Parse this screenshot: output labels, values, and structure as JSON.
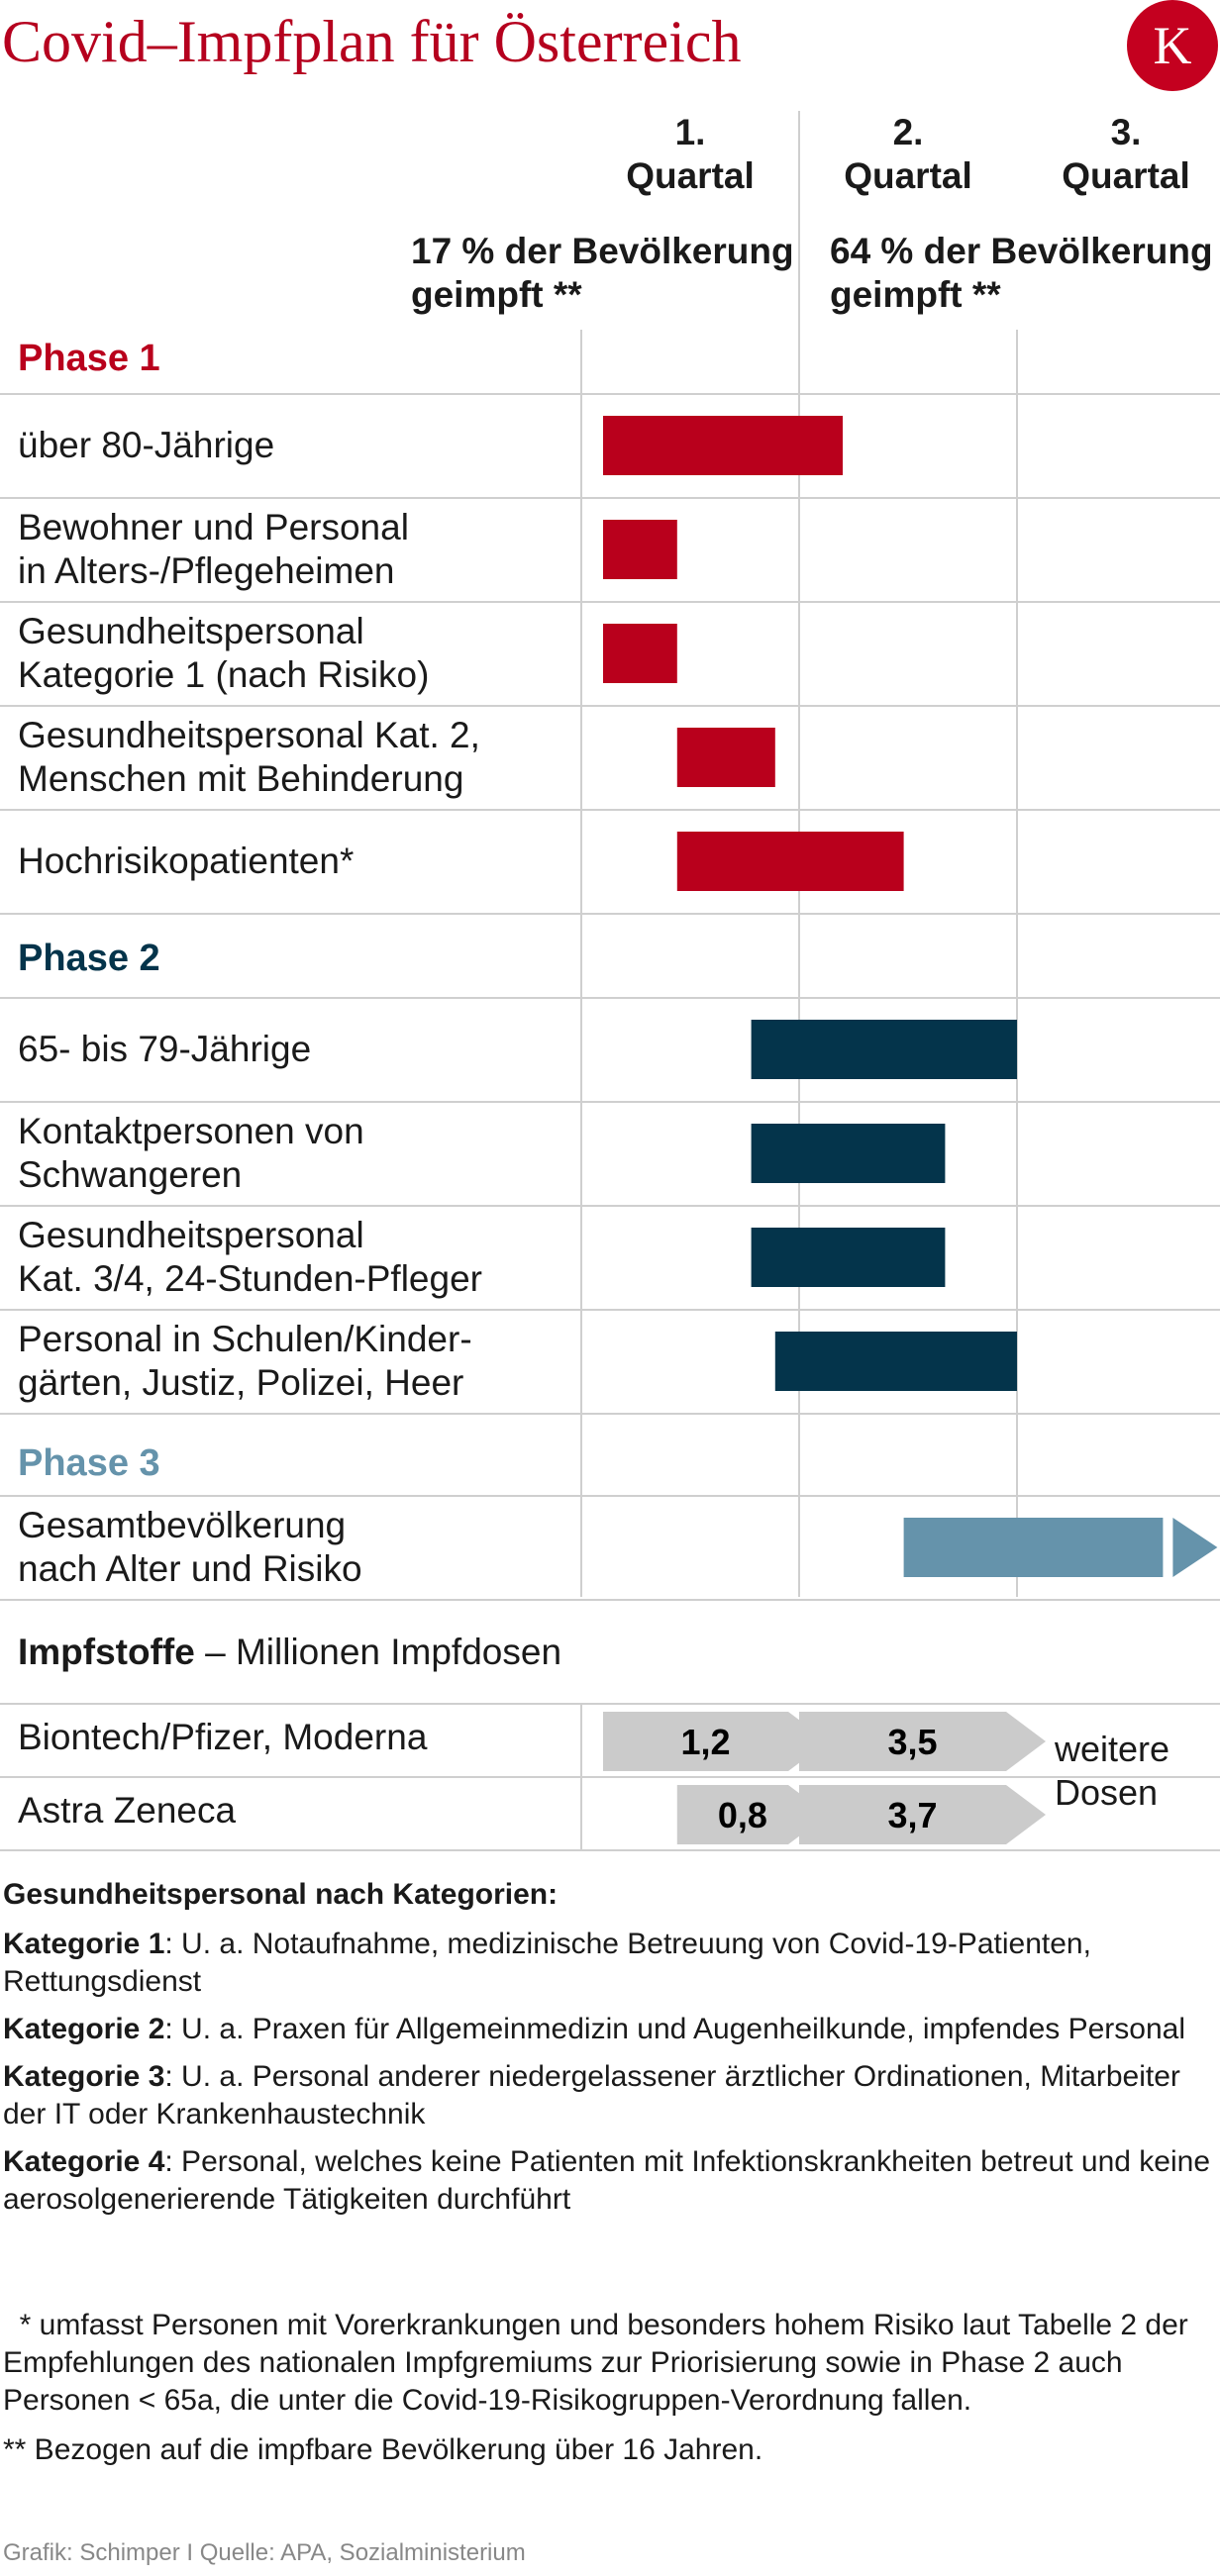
{
  "header": {
    "title": "Covid–Impfplan für Österreich",
    "logo_letter": "K"
  },
  "columns": {
    "q1": [
      "1.",
      "Quartal"
    ],
    "q2": [
      "2.",
      "Quartal"
    ],
    "q3": [
      "3.",
      "Quartal"
    ],
    "pct_q1": [
      "17 % der Bevölkerung",
      "geimpft **"
    ],
    "pct_q2": [
      "64 % der Bevölkerung",
      "geimpft **"
    ]
  },
  "colors": {
    "phase1": "#b9001c",
    "phase2": "#04344b",
    "phase3": "#6593ab",
    "dose": "#cbcbcb",
    "grid": "#cfcfcf"
  },
  "chart_data": {
    "type": "bar",
    "orientation": "horizontal-timeline",
    "x_unit": "Quartal",
    "x_ticks": [
      "1. Quartal",
      "2. Quartal",
      "3. Quartal"
    ],
    "xlim": [
      0,
      3
    ],
    "phases": [
      {
        "label": "Phase 1",
        "color": "#b9001c",
        "rows": [
          {
            "label": [
              "über 80-Jährige"
            ],
            "start": 0.1,
            "end": 1.2
          },
          {
            "label": [
              "Bewohner und Personal",
              "in Alters-/Pflegeheimen"
            ],
            "start": 0.1,
            "end": 0.44
          },
          {
            "label": [
              "Gesundheitspersonal",
              "Kategorie 1 (nach Risiko)"
            ],
            "start": 0.1,
            "end": 0.44
          },
          {
            "label": [
              "Gesundheitspersonal Kat. 2,",
              "Menschen mit Behinderung"
            ],
            "start": 0.44,
            "end": 0.89
          },
          {
            "label": [
              "Hochrisikopatienten*"
            ],
            "start": 0.44,
            "end": 1.48
          }
        ]
      },
      {
        "label": "Phase 2",
        "color": "#04344b",
        "rows": [
          {
            "label": [
              "65- bis 79-Jährige"
            ],
            "start": 0.78,
            "end": 2.0
          },
          {
            "label": [
              "Kontaktpersonen von",
              "Schwangeren"
            ],
            "start": 0.78,
            "end": 1.67
          },
          {
            "label": [
              "Gesundheitspersonal",
              "Kat. 3/4, 24-Stunden-Pfleger"
            ],
            "start": 0.78,
            "end": 1.67
          },
          {
            "label": [
              "Personal in Schulen/Kinder-",
              "gärten, Justiz, Polizei, Heer"
            ],
            "start": 0.89,
            "end": 2.0
          }
        ]
      },
      {
        "label": "Phase 3",
        "color": "#6593ab",
        "rows": [
          {
            "label": [
              "Gesamtbevölkerung",
              "nach Alter und Risiko"
            ],
            "start": 1.48,
            "end": 2.67,
            "arrow": true
          }
        ]
      }
    ],
    "doses": {
      "title_bold": "Impfstoffe",
      "title_rest": " – Millionen Impfdosen",
      "rows": [
        {
          "label": "Biontech/Pfizer, Moderna",
          "q1": "1,2",
          "q2": "3,5"
        },
        {
          "label": "Astra Zeneca",
          "q1": "0,8",
          "q2": "3,7"
        }
      ],
      "q3_note": [
        "weitere",
        "Dosen"
      ]
    }
  },
  "notes": {
    "heading": "Gesundheitspersonal nach Kategorien:",
    "items": [
      {
        "key": "Kategorie 1",
        "text": ": U. a. Notaufnahme, medizinische Betreuung von Covid-19-Patienten, Rettungsdienst"
      },
      {
        "key": "Kategorie 2",
        "text": ": U. a. Praxen für Allgemeinmedizin und Augenheilkunde, impfendes Personal"
      },
      {
        "key": "Kategorie 3",
        "text": ": U. a. Personal anderer niedergelassener ärztlicher Ordinationen, Mitarbeiter der IT oder Krankenhaustechnik"
      },
      {
        "key": "Kategorie 4",
        "text": ": Personal, welches keine Patienten mit Infektionskrankheiten betreut und keine aerosolgenerierende Tätigkeiten durchführt"
      }
    ]
  },
  "footnotes": {
    "star": "  * umfasst Personen mit Vorerkrankungen und besonders hohem Risiko laut Tabelle 2 der Empfehlungen des nationalen Impfgremiums zur Priorisierung sowie in Phase 2 auch Personen < 65a, die unter die Covid-19-Risikogruppen-Verordnung fallen.",
    "double_star": "** Bezogen auf die impfbare Bevölkerung über 16 Jahren."
  },
  "credit": "Grafik: Schimper I Quelle: APA, Sozialministerium"
}
